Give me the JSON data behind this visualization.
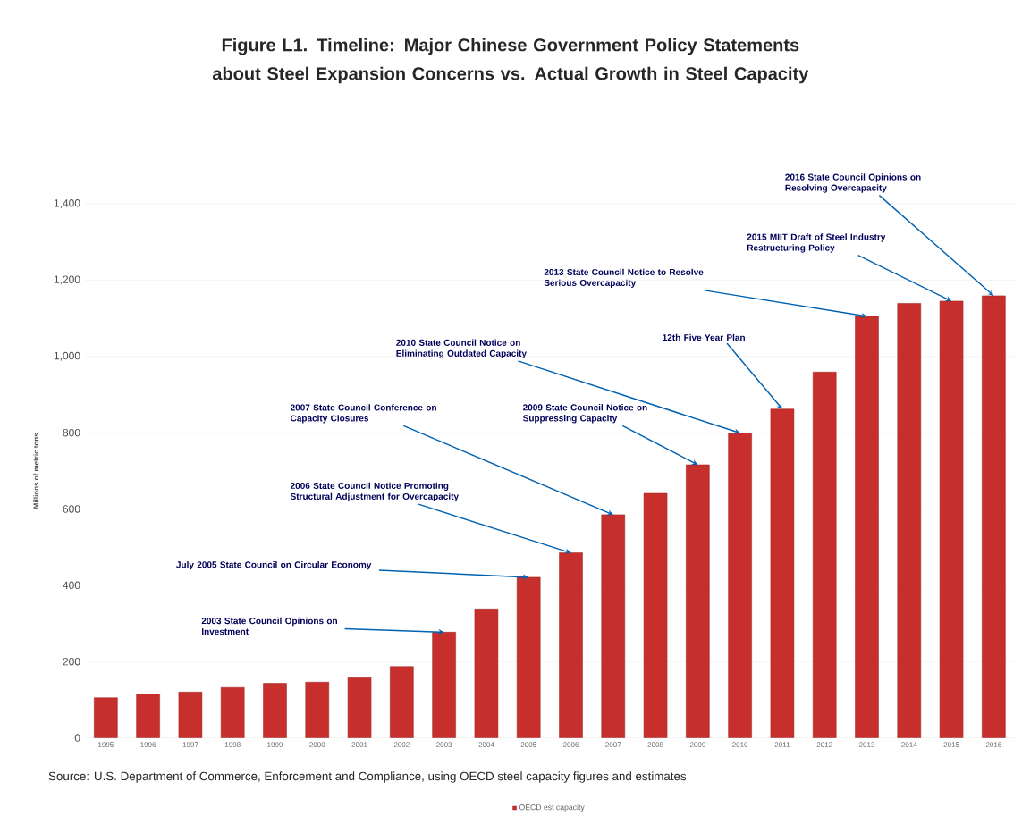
{
  "chart_data": {
    "type": "bar",
    "title": "Figure L1. Timeline: Major Chinese Government Policy Statements about Steel Expansion Concerns vs. Actual Growth in Steel Capacity",
    "ylabel": "Millions of metric tons",
    "categories": [
      "1995",
      "1996",
      "1997",
      "1998",
      "1999",
      "2000",
      "2001",
      "2002",
      "2003",
      "2004",
      "2005",
      "2006",
      "2007",
      "2008",
      "2009",
      "2010",
      "2011",
      "2012",
      "2013",
      "2014",
      "2015",
      "2016"
    ],
    "series": [
      {
        "name": "OECD est capacity",
        "color": "#c62f2c",
        "values": [
          105,
          115,
          120,
          132,
          143,
          146,
          158,
          187,
          277,
          338,
          421,
          485,
          585,
          641,
          716,
          799,
          862,
          959,
          1105,
          1139,
          1145,
          1159
        ]
      }
    ],
    "ylim": [
      0,
      1400
    ],
    "yticks": [
      0,
      200,
      400,
      600,
      800,
      {
        "value": 1000,
        "label": "1,000"
      },
      {
        "value": 1200,
        "label": "1,200"
      },
      {
        "value": 1400,
        "label": "1,400"
      }
    ],
    "grid": "y",
    "legend": "bottom",
    "annotations": [
      {
        "text": "2003 State Council Opinions on Investment",
        "x": "2003",
        "y": 277
      },
      {
        "text": "July 2005 State Council on Circular Economy",
        "x": "2005",
        "y": 421
      },
      {
        "text": "2006 State Council Notice Promoting Structural Adjustment for Overcapacity",
        "x": "2006",
        "y": 485
      },
      {
        "text": "2007 State Council Conference on Capacity Closures",
        "x": "2007",
        "y": 585
      },
      {
        "text": "2009 State Council Notice on Suppressing Capacity",
        "x": "2009",
        "y": 716
      },
      {
        "text": "2010 State Council Notice on Eliminating Outdated Capacity",
        "x": "2010",
        "y": 799
      },
      {
        "text": "12th Five Year Plan",
        "x": "2011",
        "y": 862
      },
      {
        "text": "2013 State Council Notice to Resolve Serious Overcapacity",
        "x": "2013",
        "y": 1105
      },
      {
        "text": "2015 MIIT Draft of Steel Industry Restructuring Policy",
        "x": "2015",
        "y": 1145
      },
      {
        "text": "2016 State Council Opinions on Resolving Overcapacity",
        "x": "2016",
        "y": 1159
      },
      "Source: U.S. Department of Commerce, Enforcement and Compliance, using OECD steel capacity figures and estimates"
    ]
  }
}
